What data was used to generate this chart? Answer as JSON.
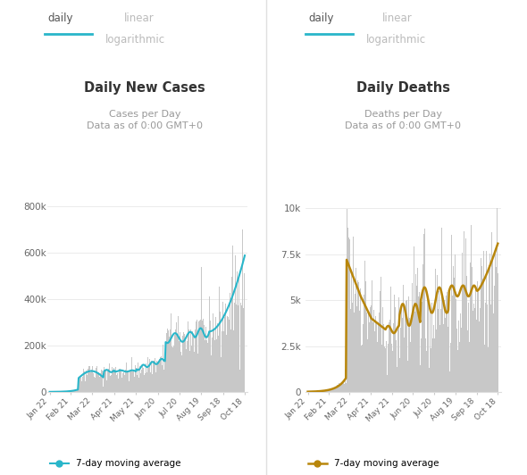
{
  "left_title": "Daily New Cases",
  "left_subtitle1": "Cases per Day",
  "left_subtitle2": "Data as of 0:00 GMT+0",
  "right_title": "Daily Deaths",
  "right_subtitle1": "Deaths per Day",
  "right_subtitle2": "Data as of 0:00 GMT+0",
  "x_tick_labels": [
    "Jan 22",
    "Feb 21",
    "Mar 22",
    "Apr 21",
    "May 21",
    "Jun 20",
    "Jul 20",
    "Aug 19",
    "Sep 18",
    "Oct 18"
  ],
  "left_yticks": [
    0,
    200000,
    400000,
    600000,
    800000
  ],
  "left_ytick_labels": [
    "0",
    "200k",
    "400k",
    "600k",
    "800k"
  ],
  "right_yticks": [
    0,
    2500,
    5000,
    7500,
    10000
  ],
  "right_ytick_labels": [
    "0",
    "2.5k",
    "5k",
    "7.5k",
    "10k"
  ],
  "bar_color": "#c8c8c8",
  "line_color_left": "#29b6ca",
  "line_color_right": "#b8860b",
  "bg_color": "#ffffff",
  "tab_underline_color": "#29b6ca",
  "legend_label": "7-day moving average",
  "checkbox_color": "#3d8fe0",
  "title_color": "#333333",
  "subtitle_color": "#999999",
  "tab_active_color": "#555555",
  "tab_inactive_color": "#bbbbbb",
  "divider_color": "#e0e0e0"
}
